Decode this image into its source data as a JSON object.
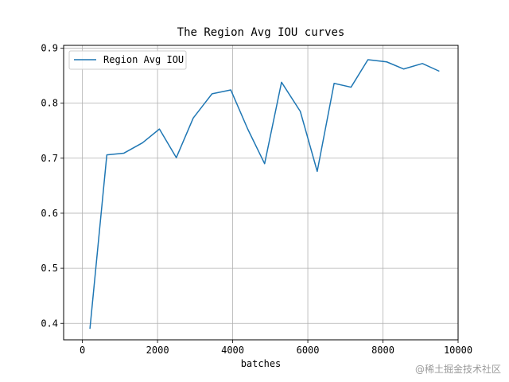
{
  "colors": {
    "series": "#1f77b4",
    "grid": "#b0b0b0",
    "axis": "#000000"
  },
  "chart_data": {
    "type": "line",
    "title": "The Region Avg IOU curves",
    "xlabel": "batches",
    "ylabel": "",
    "xlim": [
      -500,
      10000
    ],
    "ylim": [
      0.37,
      0.905
    ],
    "xticks": [
      0,
      2000,
      4000,
      6000,
      8000,
      10000
    ],
    "xtick_labels": [
      "0",
      "2000",
      "4000",
      "6000",
      "8000",
      "10000"
    ],
    "yticks": [
      0.4,
      0.5,
      0.6,
      0.7,
      0.8,
      0.9
    ],
    "ytick_labels": [
      "0.4",
      "0.5",
      "0.6",
      "0.7",
      "0.8",
      "0.9"
    ],
    "grid": true,
    "legend": {
      "placement": "top-left"
    },
    "series": [
      {
        "name": "Region Avg IOU",
        "x": [
          200,
          650,
          1100,
          1600,
          2050,
          2500,
          2950,
          3450,
          3950,
          4400,
          4850,
          5300,
          5800,
          6250,
          6700,
          7150,
          7600,
          8100,
          8550,
          9050,
          9500
        ],
        "y": [
          0.39,
          0.706,
          0.709,
          0.728,
          0.753,
          0.701,
          0.773,
          0.817,
          0.824,
          0.753,
          0.69,
          0.838,
          0.785,
          0.676,
          0.836,
          0.829,
          0.879,
          0.875,
          0.862,
          0.872,
          0.858
        ]
      }
    ]
  },
  "watermark_text": "@稀土掘金技术社区"
}
